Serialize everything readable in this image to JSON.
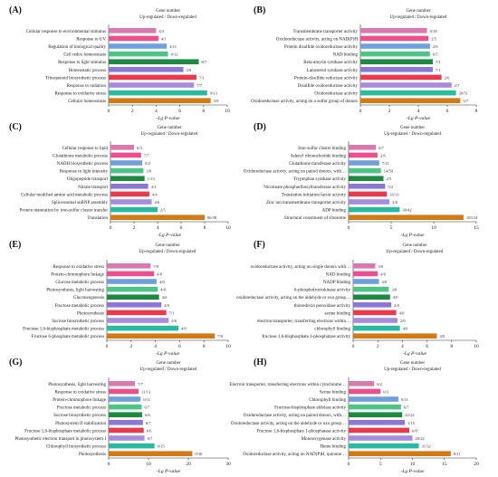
{
  "common": {
    "legend_title": "Gene number",
    "legend_subtitle": "Up-regulated / Down-regulated",
    "xlabel": "-Lg P-value"
  },
  "chart_data": [
    {
      "type": "bar",
      "orientation": "horizontal",
      "panel": "(A)",
      "xlim": [
        0,
        10
      ],
      "xticks": [
        0,
        2,
        4,
        6,
        8,
        10
      ],
      "categories": [
        "Cellular response to environmental stimulus",
        "Response to UV",
        "Regulation of biological quality",
        "Cell redox homeostasis",
        "Response to light stimulus",
        "Homeostatic process",
        "Triterpenoid biosynthetic process",
        "Response to radiation",
        "Response to oxidative stress",
        "Cellular homeostasis"
      ],
      "values": [
        4.0,
        4.2,
        4.9,
        5.0,
        7.6,
        6.3,
        7.4,
        7.2,
        8.3,
        8.6
      ],
      "labels": [
        "4/3",
        "4/1",
        "4/11",
        "4/12",
        "8/7",
        "3/9",
        "7/1",
        "7/7",
        "9/13",
        "3/9"
      ],
      "colors": [
        "#d979ad",
        "#ec4e8f",
        "#6f9fdc",
        "#4ec486",
        "#1c8a43",
        "#8b77d5",
        "#e8394d",
        "#a88bdc",
        "#2ab9a1",
        "#d17a16"
      ]
    },
    {
      "type": "bar",
      "orientation": "horizontal",
      "panel": "(B)",
      "xlim": [
        0,
        8
      ],
      "xticks": [
        0,
        2,
        4,
        6,
        8
      ],
      "categories": [
        "Transmembrane transporter activity",
        "Oxidoreductase activity, acting on NAD(P)H",
        "Protein disulfide oxidoreductase activity",
        "NAD binding",
        "Beta-amyrin synthase activity",
        "Lanosterol synthase activity",
        "Protein-disulfide reductase activity",
        "Disulfide oxidoreductase activity",
        "Oxidoreductase activity",
        "Oxidoreductase activity, acting on a sulfur group of donors"
      ],
      "values": [
        4.6,
        4.7,
        4.8,
        4.8,
        5.0,
        5.0,
        5.6,
        6.3,
        6.6,
        6.9
      ],
      "labels": [
        "0/18",
        "2/5",
        "2/9",
        "6/5",
        "7/1",
        "7/1",
        "2/6",
        "2/7",
        "20/51",
        "3/7"
      ],
      "colors": [
        "#d979ad",
        "#ec4e8f",
        "#6f9fdc",
        "#4ec486",
        "#1c8a43",
        "#8b77d5",
        "#e8394d",
        "#a88bdc",
        "#2ab9a1",
        "#d17a16"
      ]
    },
    {
      "type": "bar",
      "orientation": "horizontal",
      "panel": "(C)",
      "xlim": [
        0,
        10
      ],
      "xticks": [
        0,
        2,
        4,
        6,
        8,
        10
      ],
      "categories": [
        "Cellular response to lipid",
        "Glutathione metabolic process",
        "NADH biosynthetic process",
        "Response to light intensity",
        "Oligopeptide transport",
        "Nitrate transport",
        "Cellular modified amino acid metabolic process",
        "Spliceosomal snRNP assembly",
        "Protein maturation by iron-sulfur cluster transfer",
        "Translation"
      ],
      "values": [
        2.0,
        2.6,
        2.7,
        2.8,
        2.9,
        3.2,
        3.3,
        3.5,
        4.0,
        8.0
      ],
      "labels": [
        "6/3",
        "7/7",
        "0/2",
        "3/8",
        "1/13",
        "4/1",
        "4/4",
        "4/6",
        "2/5",
        "96/38"
      ],
      "colors": [
        "#d979ad",
        "#ec4e8f",
        "#6f9fdc",
        "#4ec486",
        "#1c8a43",
        "#8b77d5",
        "#e8394d",
        "#a88bdc",
        "#2ab9a1",
        "#d17a16"
      ]
    },
    {
      "type": "bar",
      "orientation": "horizontal",
      "panel": "(D)",
      "xlim": [
        0,
        15
      ],
      "xticks": [
        0,
        5,
        10,
        15
      ],
      "categories": [
        "Iron-sulfur cluster binding",
        "Adenyl ribonucleotide binding",
        "Glutathione transferase activity",
        "Oxidoreductase activity, acting on paired donors, with…",
        "Tryptophan synthase activity",
        "Nicotinate phosphoribosyltransferase activity",
        "Translation initiation factor activity",
        "Zinc ion transmembrane transporter activity",
        "ADP binding",
        "Structural constituent of ribosome"
      ],
      "values": [
        3.2,
        3.4,
        3.6,
        3.8,
        4.1,
        4.3,
        4.5,
        4.8,
        6.0,
        13.5
      ],
      "labels": [
        "6/7",
        "2/6",
        "7/11",
        "14/59",
        "2/5",
        "5/2",
        "16/13",
        "2/6",
        "30/42",
        "105/34"
      ],
      "colors": [
        "#d979ad",
        "#ec4e8f",
        "#6f9fdc",
        "#4ec486",
        "#1c8a43",
        "#8b77d5",
        "#e8394d",
        "#a88bdc",
        "#2ab9a1",
        "#d17a16"
      ]
    },
    {
      "type": "bar",
      "orientation": "horizontal",
      "panel": "(E)",
      "xlim": [
        0,
        10
      ],
      "xticks": [
        0,
        2,
        4,
        6,
        8,
        10
      ],
      "categories": [
        "Response to oxidative stress",
        "Protein-chromophore linkage",
        "Glucose metabolic process",
        "Photosynthesis, light harvesting",
        "Gluconeogenesis",
        "Fructose metabolic process",
        "Photosynthesis",
        "Sucrose biosynthetic process",
        "Fructose 1,6-bisphosphate metabolic process",
        "Fructose 6-phosphate metabolic process"
      ],
      "values": [
        3.6,
        3.9,
        4.1,
        4.2,
        4.3,
        4.5,
        4.9,
        5.1,
        5.9,
        8.9
      ],
      "labels": [
        "7/0",
        "4/0",
        "4/0",
        "4/0",
        "4/0",
        "4/0",
        "7/1",
        "4/0",
        "4/0",
        "7/0"
      ],
      "colors": [
        "#d979ad",
        "#ec4e8f",
        "#6f9fdc",
        "#4ec486",
        "#1c8a43",
        "#8b77d5",
        "#e8394d",
        "#a88bdc",
        "#2ab9a1",
        "#d17a16"
      ]
    },
    {
      "type": "bar",
      "orientation": "horizontal",
      "panel": "(F)",
      "xlim": [
        0,
        10
      ],
      "xticks": [
        0,
        2,
        4,
        6,
        8,
        10
      ],
      "categories": [
        "oxidoreductase activity, acting on single donors with…",
        "NAD binding",
        "NADP binding",
        "6-phosphofructokinase activity",
        "oxidoreductase activity, acting on the aldehyde or oxo group…",
        "thioredoxin peroxidase activity",
        "serine binding",
        "electron transporter, transferring electrons within…",
        "chlorophyll binding",
        "fructose 1,6-bisphosphate 1-phosphatase activity"
      ],
      "values": [
        1.8,
        2.0,
        2.1,
        2.9,
        3.0,
        3.1,
        3.5,
        3.6,
        3.8,
        6.8
      ],
      "labels": [
        "3/0",
        "4/0",
        "4/0",
        "3/0",
        "4/0",
        "2/0",
        "4/0",
        "2/0",
        "4/0",
        "4/0"
      ],
      "colors": [
        "#d979ad",
        "#ec4e8f",
        "#6f9fdc",
        "#4ec486",
        "#1c8a43",
        "#8b77d5",
        "#e8394d",
        "#a88bdc",
        "#2ab9a1",
        "#d17a16"
      ]
    },
    {
      "type": "bar",
      "orientation": "horizontal",
      "panel": "(G)",
      "xlim": [
        0,
        30
      ],
      "xticks": [
        0,
        10,
        20,
        30
      ],
      "categories": [
        "Photosynthesis, light harvesting",
        "Response to oxidative stress",
        "Protein-chromophore linkage",
        "Fructose metabolic process",
        "Sucrose biosynthetic process",
        "Photosystem II stabilization",
        "Fructose 1,6-bisphosphate metabolic process",
        "Photosynthetic electron transport in photosystem I",
        "Chlorophyll biosynthetic process",
        "Photosynthesis"
      ],
      "values": [
        6.6,
        7.5,
        8.0,
        8.3,
        8.4,
        8.6,
        8.8,
        9.0,
        11.5,
        21.0
      ],
      "labels": [
        "7/7",
        "11/13",
        "0/11",
        "6/7",
        "6/6",
        "6/7",
        "6/6",
        "6/7",
        "0/15",
        "0/30"
      ],
      "colors": [
        "#d979ad",
        "#ec4e8f",
        "#6f9fdc",
        "#4ec486",
        "#1c8a43",
        "#8b77d5",
        "#e8394d",
        "#a88bdc",
        "#2ab9a1",
        "#d17a16"
      ]
    },
    {
      "type": "bar",
      "orientation": "horizontal",
      "panel": "(H)",
      "xlim": [
        0,
        20
      ],
      "xticks": [
        0,
        5,
        10,
        15,
        20
      ],
      "categories": [
        "Electron transporter, transferring electrons within cytochrome…",
        "Serine binding",
        "Chlorophyll binding",
        "Fructose-bisphosphate aldolase activity",
        "Oxidoreductase activity, acting on paired donors, with…",
        "Oxidoreductase activity, acting on the aldehyde or oxo group…",
        "Fructose 1,6-bisphosphate 1-phosphatase activity",
        "Monooxygenase activity",
        "Heme binding",
        "Oxidoreductase activity, acting on NAD(P)H, quinone…"
      ],
      "values": [
        4.0,
        5.0,
        7.8,
        8.2,
        8.4,
        8.8,
        9.5,
        10.0,
        11.0,
        16.0
      ],
      "labels": [
        "6/2",
        "0/3",
        "0/11",
        "6/7",
        "22/22",
        "1/15",
        "6/8",
        "20/22",
        "31/32",
        "0/11"
      ],
      "colors": [
        "#d979ad",
        "#ec4e8f",
        "#6f9fdc",
        "#4ec486",
        "#1c8a43",
        "#8b77d5",
        "#e8394d",
        "#a88bdc",
        "#2ab9a1",
        "#d17a16"
      ]
    }
  ]
}
